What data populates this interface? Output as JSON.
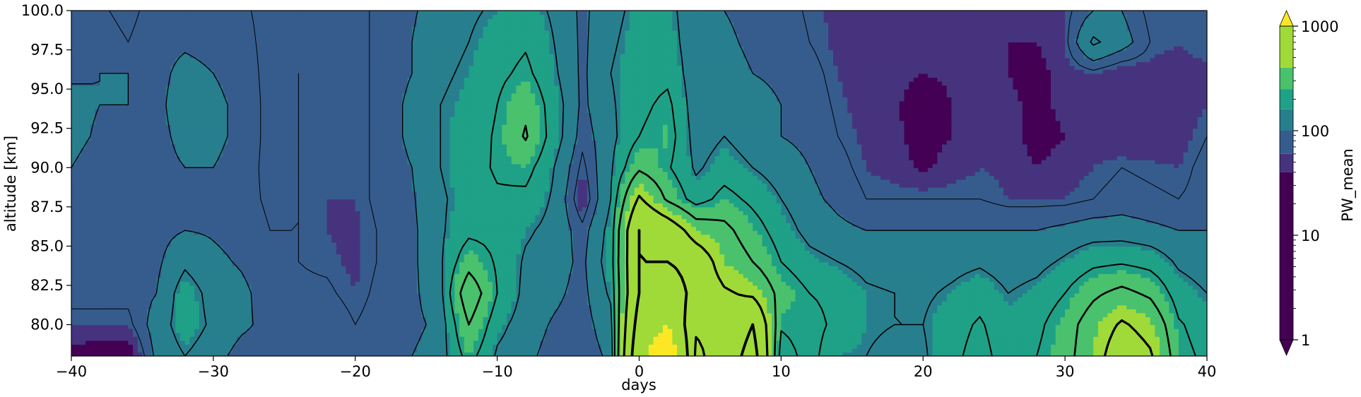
{
  "chart_data": {
    "type": "heatmap",
    "subtype": "filled-contour with overlaid line contours",
    "xlabel": "days",
    "ylabel": "altitude [km]",
    "xlim": [
      -40,
      40
    ],
    "ylim": [
      78,
      100
    ],
    "xticks": [
      -40,
      -30,
      -20,
      -10,
      0,
      10,
      20,
      30,
      40
    ],
    "xtick_labels": [
      "−40",
      "−30",
      "−20",
      "−10",
      "0",
      "10",
      "20",
      "30",
      "40"
    ],
    "yticks": [
      80.0,
      82.5,
      85.0,
      87.5,
      90.0,
      92.5,
      95.0,
      97.5,
      100.0
    ],
    "ytick_labels": [
      "80.0",
      "82.5",
      "85.0",
      "87.5",
      "90.0",
      "92.5",
      "95.0",
      "97.5",
      "100.0"
    ],
    "colorbar": {
      "label": "PW_mean",
      "scale": "log",
      "colormap": "viridis",
      "extend": "both",
      "range": [
        1,
        1000
      ],
      "ticks": [
        1,
        10,
        100,
        1000
      ],
      "tick_labels": [
        "1",
        "10",
        "100",
        "1000"
      ],
      "levels": [
        1,
        40,
        60,
        100,
        160,
        250,
        400,
        1000
      ],
      "colors": [
        "#440154",
        "#46337e",
        "#365c8d",
        "#277f8e",
        "#1fa187",
        "#4ac16d",
        "#a0da39",
        "#fde725"
      ]
    },
    "x_days": [
      -40,
      -38,
      -36,
      -34,
      -32,
      -30,
      -28,
      -26,
      -24,
      -22,
      -20,
      -18,
      -16,
      -14,
      -12,
      -10,
      -8,
      -6,
      -4,
      -2,
      0,
      2,
      4,
      6,
      8,
      10,
      12,
      14,
      16,
      18,
      20,
      22,
      24,
      26,
      28,
      30,
      32,
      34,
      36,
      38,
      40
    ],
    "y_altitude_km": [
      78,
      80,
      82,
      84,
      86,
      88,
      90,
      92,
      94,
      96,
      98,
      100
    ],
    "z_PW_mean_rows_by_altitude": [
      [
        30,
        20,
        15,
        110,
        150,
        120,
        80,
        75,
        90,
        90,
        70,
        85,
        100,
        120,
        250,
        140,
        110,
        85,
        75,
        110,
        900,
        1300,
        450,
        550,
        800,
        180,
        250,
        160,
        150,
        130,
        140,
        200,
        250,
        180,
        220,
        280,
        400,
        600,
        500,
        250,
        200
      ],
      [
        60,
        60,
        60,
        120,
        180,
        140,
        110,
        85,
        85,
        90,
        70,
        85,
        90,
        110,
        320,
        170,
        120,
        95,
        80,
        130,
        800,
        1000,
        500,
        500,
        700,
        230,
        250,
        200,
        160,
        150,
        150,
        190,
        230,
        170,
        200,
        270,
        380,
        500,
        420,
        230,
        180
      ],
      [
        80,
        80,
        80,
        100,
        180,
        130,
        110,
        80,
        75,
        75,
        60,
        80,
        90,
        130,
        400,
        220,
        130,
        110,
        85,
        160,
        700,
        900,
        600,
        500,
        450,
        280,
        220,
        200,
        160,
        150,
        140,
        160,
        190,
        150,
        170,
        220,
        300,
        350,
        300,
        180,
        150
      ],
      [
        85,
        75,
        85,
        90,
        140,
        110,
        95,
        75,
        70,
        65,
        55,
        75,
        90,
        140,
        280,
        210,
        140,
        120,
        90,
        180,
        700,
        700,
        600,
        400,
        320,
        220,
        170,
        150,
        130,
        120,
        120,
        130,
        140,
        120,
        130,
        160,
        200,
        210,
        190,
        140,
        120
      ],
      [
        90,
        75,
        85,
        85,
        100,
        95,
        85,
        70,
        70,
        60,
        55,
        75,
        90,
        140,
        200,
        200,
        160,
        130,
        80,
        170,
        700,
        600,
        400,
        350,
        260,
        180,
        130,
        110,
        100,
        100,
        100,
        100,
        100,
        100,
        100,
        110,
        120,
        120,
        110,
        100,
        100
      ],
      [
        95,
        80,
        90,
        85,
        90,
        90,
        80,
        65,
        70,
        60,
        60,
        80,
        95,
        140,
        180,
        210,
        200,
        140,
        40,
        150,
        500,
        300,
        180,
        250,
        200,
        150,
        110,
        90,
        70,
        70,
        70,
        70,
        70,
        60,
        60,
        60,
        70,
        80,
        75,
        70,
        80
      ],
      [
        100,
        85,
        90,
        90,
        100,
        100,
        85,
        60,
        70,
        60,
        60,
        80,
        100,
        150,
        190,
        230,
        250,
        150,
        60,
        140,
        300,
        230,
        140,
        180,
        150,
        120,
        100,
        80,
        60,
        50,
        35,
        50,
        60,
        55,
        40,
        50,
        60,
        70,
        65,
        60,
        80
      ],
      [
        110,
        95,
        95,
        90,
        110,
        110,
        90,
        60,
        70,
        60,
        60,
        80,
        110,
        150,
        180,
        230,
        330,
        180,
        80,
        130,
        220,
        260,
        120,
        150,
        120,
        100,
        90,
        70,
        55,
        45,
        30,
        40,
        60,
        50,
        30,
        40,
        50,
        40,
        40,
        50,
        70
      ],
      [
        110,
        100,
        100,
        90,
        120,
        110,
        90,
        60,
        70,
        65,
        60,
        80,
        110,
        150,
        170,
        220,
        300,
        180,
        90,
        140,
        200,
        240,
        110,
        130,
        110,
        100,
        85,
        65,
        50,
        45,
        20,
        40,
        60,
        45,
        35,
        45,
        50,
        40,
        45,
        50,
        60
      ],
      [
        95,
        100,
        100,
        90,
        110,
        100,
        85,
        60,
        70,
        65,
        60,
        80,
        100,
        140,
        160,
        200,
        240,
        160,
        90,
        150,
        190,
        200,
        110,
        120,
        100,
        95,
        80,
        60,
        45,
        50,
        40,
        45,
        60,
        40,
        30,
        50,
        60,
        40,
        50,
        50,
        55
      ],
      [
        90,
        85,
        70,
        90,
        95,
        90,
        80,
        60,
        65,
        60,
        60,
        80,
        100,
        130,
        150,
        180,
        210,
        150,
        90,
        140,
        180,
        180,
        110,
        110,
        90,
        90,
        70,
        55,
        45,
        50,
        50,
        50,
        60,
        40,
        40,
        60,
        160,
        120,
        70,
        60,
        70
      ],
      [
        85,
        75,
        60,
        85,
        90,
        85,
        75,
        60,
        60,
        60,
        60,
        80,
        95,
        120,
        140,
        160,
        180,
        140,
        90,
        130,
        170,
        170,
        110,
        100,
        85,
        85,
        65,
        55,
        45,
        50,
        55,
        50,
        55,
        40,
        45,
        60,
        100,
        100,
        60,
        60,
        70
      ]
    ],
    "line_contours": "black contour lines of a second field drawn at several levels, thicker for higher levels"
  }
}
